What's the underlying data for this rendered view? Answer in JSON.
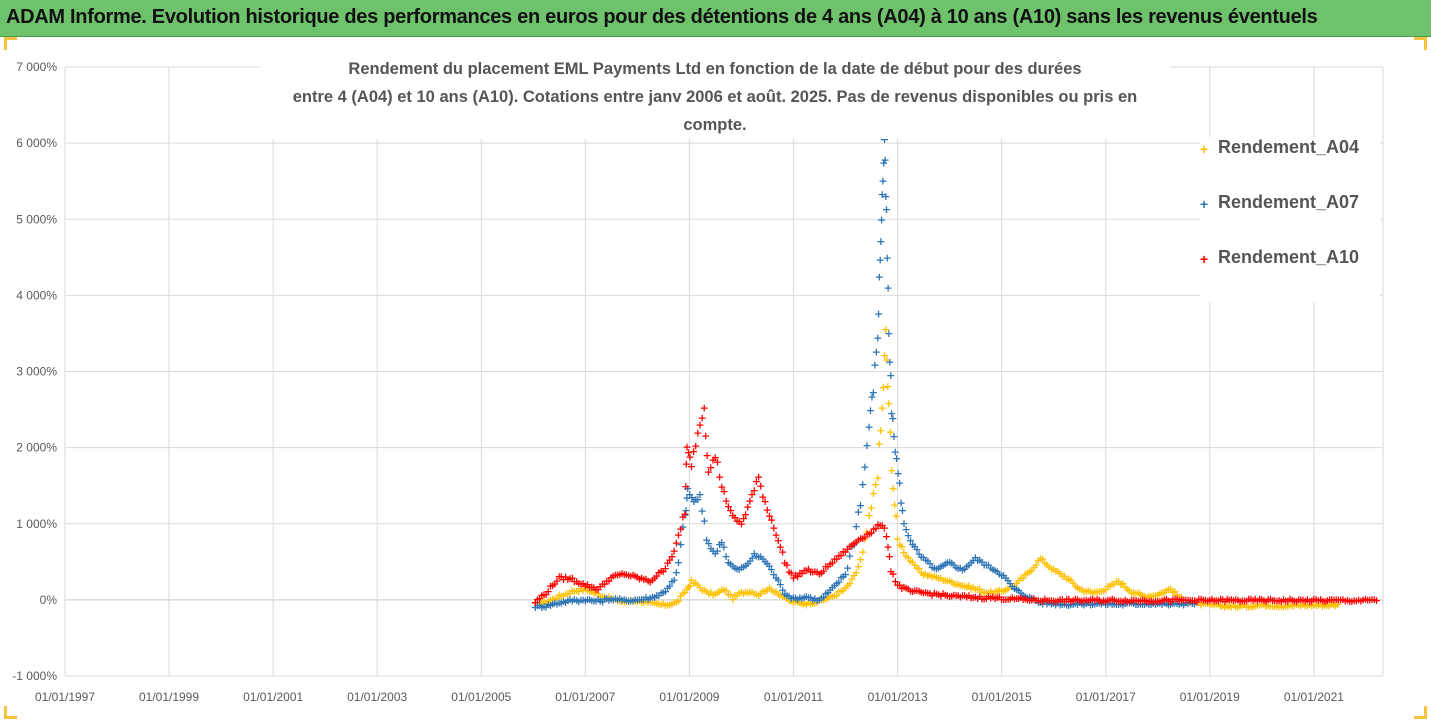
{
  "banner": {
    "title": "ADAM Informe. Evolution historique des performances en euros pour des détentions de 4 ans (A04) à 10 ans (A10) sans les revenus éventuels"
  },
  "colors": {
    "banner_bg": "#6fc26c",
    "A04": "#ffc000",
    "A07": "#2e75b6",
    "A10": "#ff0000"
  },
  "chart_data": {
    "type": "scatter",
    "marker": "+",
    "title_line1": "Rendement du placement EML Payments Ltd en fonction de la date de début pour des durées",
    "title_line2": "entre 4 (A04) et 10 ans (A10). Cotations entre janv 2006 et août. 2025. Pas de revenus disponibles ou pris en compte.",
    "xlabel": "",
    "ylabel": "",
    "xlim": [
      "1997-01-01",
      "2022-05-01"
    ],
    "ylim": [
      -1000,
      7000
    ],
    "grid": true,
    "legend_position": "right",
    "x_ticks": [
      "01/01/1997",
      "01/01/1999",
      "01/01/2001",
      "01/01/2003",
      "01/01/2005",
      "01/01/2007",
      "01/01/2009",
      "01/01/2011",
      "01/01/2013",
      "01/01/2015",
      "01/01/2017",
      "01/01/2019",
      "01/01/2021"
    ],
    "y_ticks": [
      {
        "value": -1000,
        "label": "-1 000%"
      },
      {
        "value": 0,
        "label": "0%"
      },
      {
        "value": 1000,
        "label": "1 000%"
      },
      {
        "value": 2000,
        "label": "2 000%"
      },
      {
        "value": 3000,
        "label": "3 000%"
      },
      {
        "value": 4000,
        "label": "4 000%"
      },
      {
        "value": 5000,
        "label": "5 000%"
      },
      {
        "value": 6000,
        "label": "6 000%"
      },
      {
        "value": 7000,
        "label": "7 000%"
      }
    ],
    "series": [
      {
        "name": "Rendement_A04",
        "color": "#ffc000",
        "points": [
          [
            "2006-01-15",
            -50
          ],
          [
            "2006-04-01",
            -20
          ],
          [
            "2006-07-01",
            50
          ],
          [
            "2006-10-01",
            120
          ],
          [
            "2007-01-01",
            150
          ],
          [
            "2007-04-01",
            80
          ],
          [
            "2007-07-01",
            20
          ],
          [
            "2007-10-01",
            -20
          ],
          [
            "2008-01-01",
            0
          ],
          [
            "2008-04-01",
            -40
          ],
          [
            "2008-07-01",
            -60
          ],
          [
            "2008-10-01",
            -30
          ],
          [
            "2008-12-15",
            150
          ],
          [
            "2009-01-15",
            250
          ],
          [
            "2009-03-01",
            200
          ],
          [
            "2009-05-01",
            100
          ],
          [
            "2009-07-01",
            80
          ],
          [
            "2009-09-01",
            150
          ],
          [
            "2009-11-01",
            30
          ],
          [
            "2010-01-01",
            100
          ],
          [
            "2010-03-01",
            120
          ],
          [
            "2010-05-01",
            80
          ],
          [
            "2010-07-01",
            150
          ],
          [
            "2010-09-01",
            120
          ],
          [
            "2010-11-01",
            30
          ],
          [
            "2011-01-01",
            -20
          ],
          [
            "2011-04-01",
            -40
          ],
          [
            "2011-07-01",
            -10
          ],
          [
            "2011-10-01",
            50
          ],
          [
            "2012-01-01",
            150
          ],
          [
            "2012-03-01",
            300
          ],
          [
            "2012-05-01",
            600
          ],
          [
            "2012-07-01",
            1200
          ],
          [
            "2012-08-15",
            1700
          ],
          [
            "2012-09-15",
            2500
          ],
          [
            "2012-10-10",
            3500
          ],
          [
            "2012-11-01",
            2500
          ],
          [
            "2012-12-01",
            1500
          ],
          [
            "2013-01-01",
            800
          ],
          [
            "2013-03-01",
            600
          ],
          [
            "2013-05-01",
            450
          ],
          [
            "2013-07-01",
            350
          ],
          [
            "2013-10-01",
            300
          ],
          [
            "2014-01-01",
            250
          ],
          [
            "2014-04-01",
            200
          ],
          [
            "2014-07-01",
            150
          ],
          [
            "2014-10-01",
            100
          ],
          [
            "2015-01-01",
            120
          ],
          [
            "2015-04-01",
            200
          ],
          [
            "2015-07-01",
            350
          ],
          [
            "2015-10-01",
            550
          ],
          [
            "2016-01-01",
            400
          ],
          [
            "2016-04-01",
            300
          ],
          [
            "2016-07-01",
            150
          ],
          [
            "2016-10-01",
            100
          ],
          [
            "2017-01-01",
            150
          ],
          [
            "2017-04-01",
            250
          ],
          [
            "2017-07-01",
            120
          ],
          [
            "2017-10-01",
            50
          ],
          [
            "2018-01-01",
            80
          ],
          [
            "2018-04-01",
            150
          ],
          [
            "2018-07-01",
            0
          ],
          [
            "2018-10-01",
            -40
          ],
          [
            "2019-01-01",
            -60
          ],
          [
            "2019-07-01",
            -80
          ],
          [
            "2020-01-01",
            -60
          ],
          [
            "2020-07-01",
            -70
          ],
          [
            "2021-01-01",
            -60
          ],
          [
            "2021-07-01",
            -60
          ]
        ]
      },
      {
        "name": "Rendement_A07",
        "color": "#2e75b6",
        "points": [
          [
            "2006-01-15",
            -80
          ],
          [
            "2006-04-01",
            -70
          ],
          [
            "2006-07-01",
            -30
          ],
          [
            "2006-10-01",
            0
          ],
          [
            "2007-01-01",
            10
          ],
          [
            "2007-04-01",
            -10
          ],
          [
            "2007-07-01",
            20
          ],
          [
            "2007-10-01",
            0
          ],
          [
            "2008-01-01",
            10
          ],
          [
            "2008-04-01",
            30
          ],
          [
            "2008-07-01",
            100
          ],
          [
            "2008-10-01",
            300
          ],
          [
            "2008-12-01",
            1100
          ],
          [
            "2008-12-20",
            1450
          ],
          [
            "2009-02-01",
            1300
          ],
          [
            "2009-03-15",
            1350
          ],
          [
            "2009-05-01",
            800
          ],
          [
            "2009-07-01",
            600
          ],
          [
            "2009-08-15",
            800
          ],
          [
            "2009-10-01",
            500
          ],
          [
            "2009-12-01",
            400
          ],
          [
            "2010-02-01",
            450
          ],
          [
            "2010-04-01",
            600
          ],
          [
            "2010-06-01",
            550
          ],
          [
            "2010-07-15",
            450
          ],
          [
            "2010-09-01",
            300
          ],
          [
            "2010-11-01",
            100
          ],
          [
            "2011-01-01",
            20
          ],
          [
            "2011-04-01",
            50
          ],
          [
            "2011-07-01",
            0
          ],
          [
            "2011-10-01",
            150
          ],
          [
            "2012-01-01",
            350
          ],
          [
            "2012-03-01",
            800
          ],
          [
            "2012-05-01",
            1500
          ],
          [
            "2012-06-15",
            2300
          ],
          [
            "2012-07-15",
            2800
          ],
          [
            "2012-08-15",
            3500
          ],
          [
            "2012-09-01",
            4500
          ],
          [
            "2012-09-15",
            5300
          ],
          [
            "2012-10-01",
            6000
          ],
          [
            "2012-10-15",
            5000
          ],
          [
            "2012-11-01",
            3500
          ],
          [
            "2012-11-20",
            2500
          ],
          [
            "2012-12-15",
            2000
          ],
          [
            "2013-01-15",
            1500
          ],
          [
            "2013-02-15",
            1000
          ],
          [
            "2013-04-01",
            800
          ],
          [
            "2013-06-01",
            600
          ],
          [
            "2013-08-01",
            500
          ],
          [
            "2013-10-01",
            400
          ],
          [
            "2014-01-01",
            500
          ],
          [
            "2014-04-01",
            400
          ],
          [
            "2014-07-01",
            550
          ],
          [
            "2014-10-01",
            450
          ],
          [
            "2015-01-01",
            350
          ],
          [
            "2015-04-01",
            150
          ],
          [
            "2015-07-01",
            50
          ],
          [
            "2015-10-01",
            -30
          ],
          [
            "2016-04-01",
            -50
          ],
          [
            "2016-10-01",
            -40
          ],
          [
            "2017-04-01",
            -50
          ],
          [
            "2017-10-01",
            -40
          ],
          [
            "2018-04-01",
            -50
          ],
          [
            "2018-10-01",
            -30
          ]
        ]
      },
      {
        "name": "Rendement_A10",
        "color": "#ff0000",
        "points": [
          [
            "2006-01-15",
            -20
          ],
          [
            "2006-04-01",
            100
          ],
          [
            "2006-07-01",
            300
          ],
          [
            "2006-10-01",
            280
          ],
          [
            "2007-01-01",
            200
          ],
          [
            "2007-04-01",
            150
          ],
          [
            "2007-07-01",
            300
          ],
          [
            "2007-10-01",
            350
          ],
          [
            "2008-01-01",
            300
          ],
          [
            "2008-04-01",
            250
          ],
          [
            "2008-07-01",
            400
          ],
          [
            "2008-10-01",
            700
          ],
          [
            "2008-12-01",
            1200
          ],
          [
            "2008-12-15",
            2000
          ],
          [
            "2009-01-15",
            1800
          ],
          [
            "2009-03-01",
            2200
          ],
          [
            "2009-04-15",
            2550
          ],
          [
            "2009-05-15",
            1700
          ],
          [
            "2009-07-01",
            1900
          ],
          [
            "2009-09-01",
            1400
          ],
          [
            "2009-11-01",
            1100
          ],
          [
            "2010-01-01",
            1000
          ],
          [
            "2010-03-01",
            1300
          ],
          [
            "2010-05-01",
            1600
          ],
          [
            "2010-07-01",
            1200
          ],
          [
            "2010-09-01",
            900
          ],
          [
            "2010-11-01",
            500
          ],
          [
            "2011-01-01",
            300
          ],
          [
            "2011-04-01",
            400
          ],
          [
            "2011-07-01",
            350
          ],
          [
            "2011-10-01",
            500
          ],
          [
            "2012-01-01",
            650
          ],
          [
            "2012-04-01",
            800
          ],
          [
            "2012-07-01",
            900
          ],
          [
            "2012-09-01",
            1000
          ],
          [
            "2012-10-15",
            900
          ],
          [
            "2012-11-15",
            400
          ],
          [
            "2013-01-01",
            200
          ],
          [
            "2013-04-01",
            120
          ],
          [
            "2013-07-01",
            100
          ],
          [
            "2013-10-01",
            80
          ],
          [
            "2014-01-01",
            60
          ],
          [
            "2014-07-01",
            40
          ],
          [
            "2015-01-01",
            30
          ],
          [
            "2015-07-01",
            10
          ],
          [
            "2016-01-01",
            0
          ],
          [
            "2017-01-01",
            0
          ],
          [
            "2018-01-01",
            0
          ],
          [
            "2019-01-01",
            0
          ],
          [
            "2020-01-01",
            0
          ],
          [
            "2021-01-01",
            0
          ],
          [
            "2022-04-01",
            0
          ]
        ]
      }
    ]
  }
}
